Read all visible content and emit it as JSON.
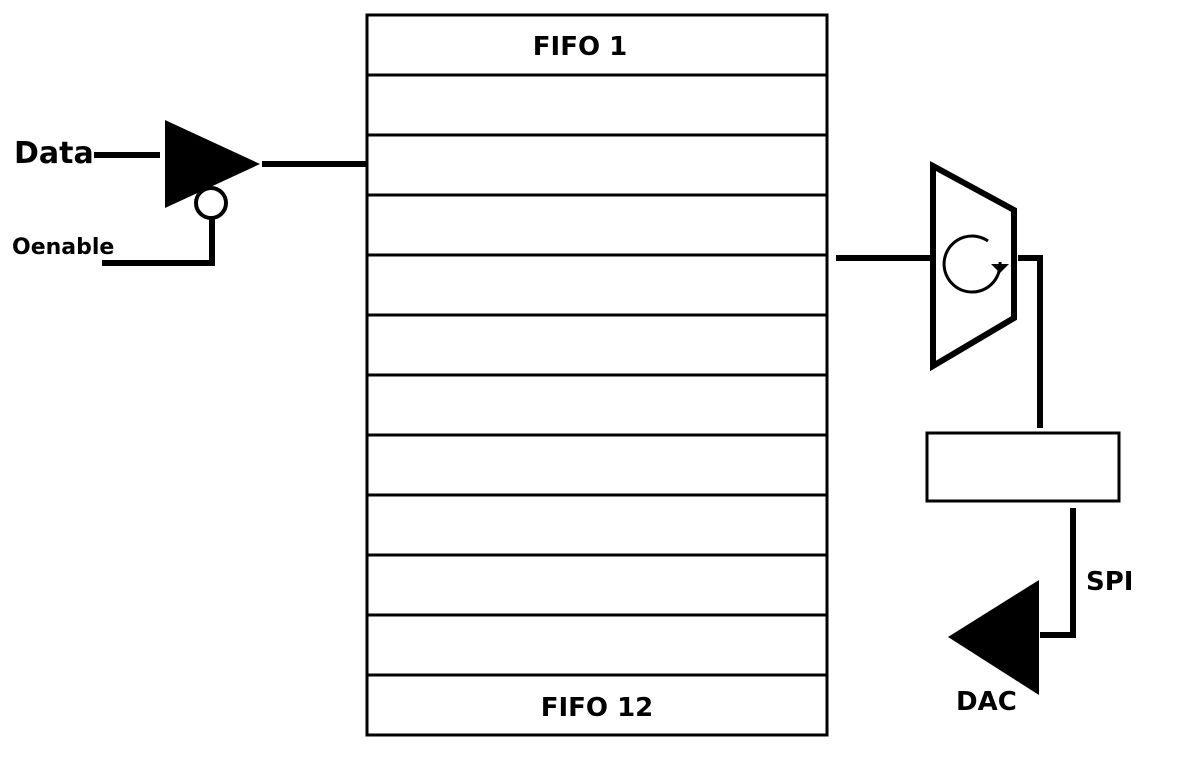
{
  "labels": {
    "data_input": "Data",
    "output_enable": "Oenable",
    "fifo_first": "FIFO 1",
    "fifo_last": "FIFO 12",
    "bus": "SPI",
    "converter": "DAC"
  },
  "colors": {
    "ink": "#000000",
    "background": "#ffffff"
  },
  "icons": {
    "buffer": "tristate-buffer-icon",
    "rotator": "rotate-arrow-icon",
    "dac": "dac-triangle-icon"
  }
}
